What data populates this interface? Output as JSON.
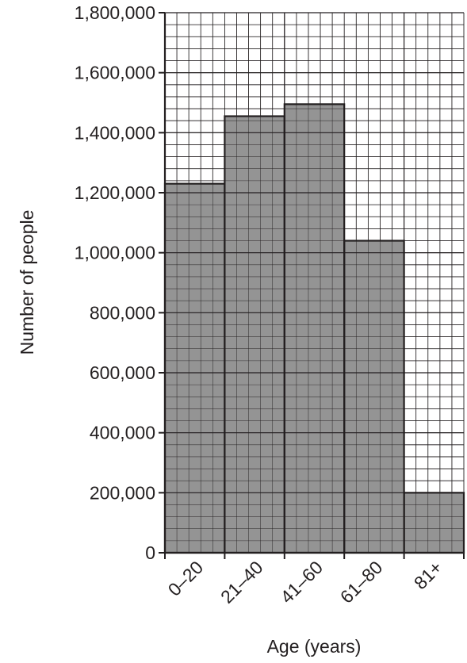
{
  "chart_data": {
    "type": "bar",
    "xlabel": "Age (years)",
    "ylabel": "Number of people",
    "categories": [
      "0–20",
      "21–40",
      "41–60",
      "61–80",
      "81+"
    ],
    "values": [
      1230000,
      1455000,
      1495000,
      1040000,
      200000
    ],
    "ylim": [
      0,
      1800000
    ],
    "yticks": [
      0,
      200000,
      400000,
      600000,
      800000,
      1000000,
      1200000,
      1400000,
      1600000,
      1800000
    ],
    "ytick_labels": [
      "0",
      "200,000",
      "400,000",
      "600,000",
      "800,000",
      "1,000,000",
      "1,200,000",
      "1,400,000",
      "1,600,000",
      "1,800,000"
    ],
    "grid": true,
    "bar_color": "#949494",
    "line_color": "#231f20"
  }
}
